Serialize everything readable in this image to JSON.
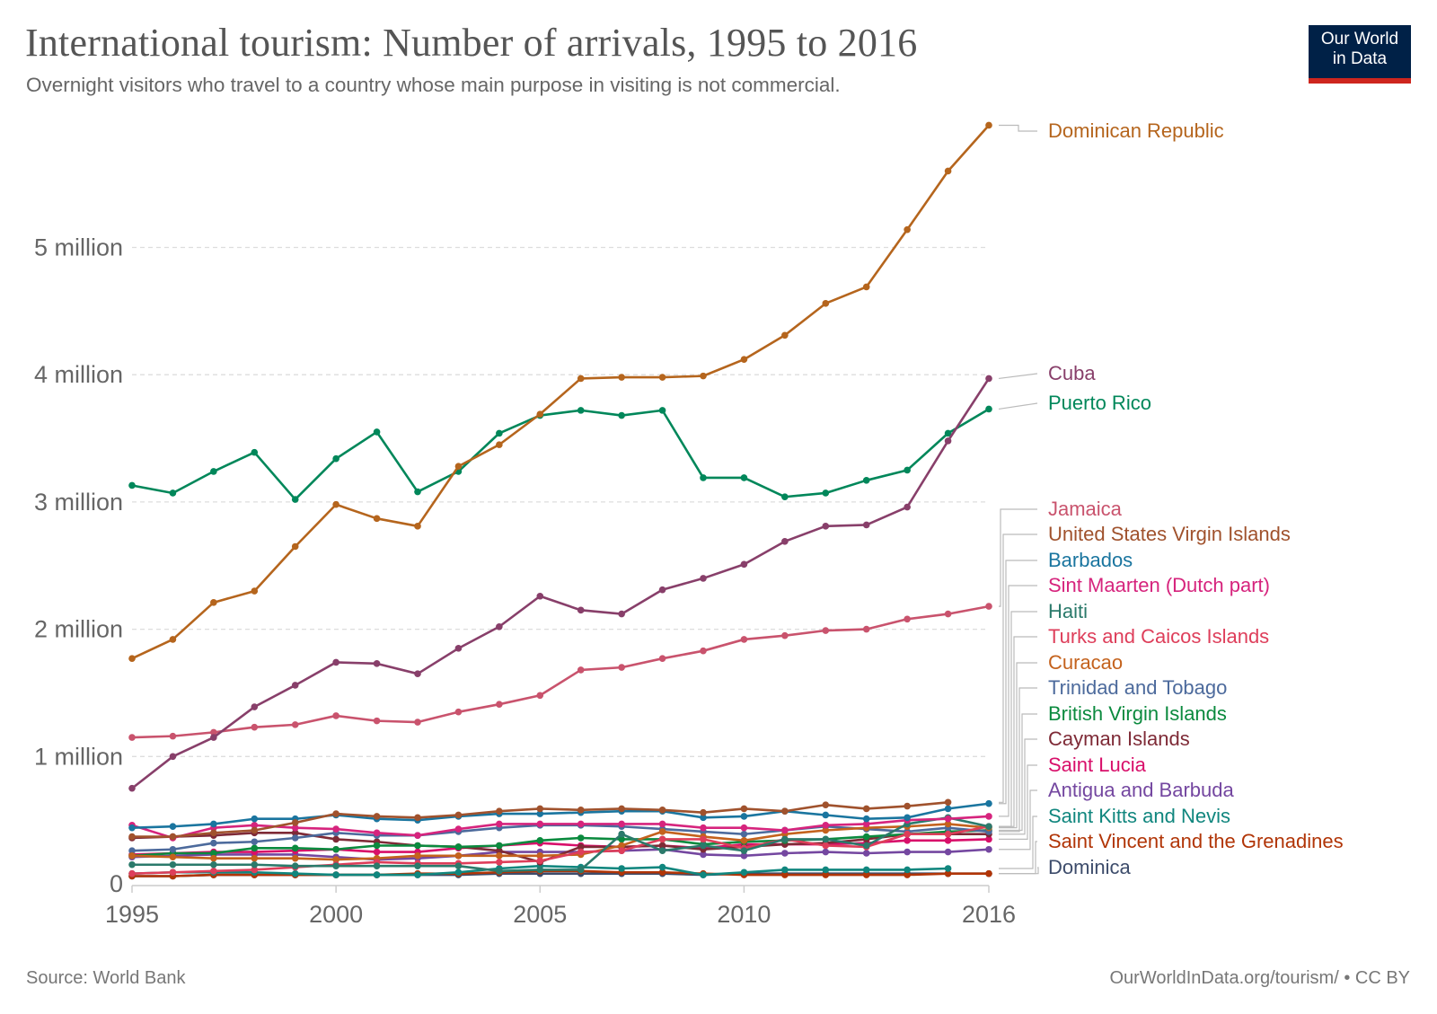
{
  "header": {
    "title": "International tourism: Number of arrivals, 1995 to 2016",
    "subtitle": "Overnight visitors who travel to a country whose main purpose in visiting is not commercial.",
    "logo_line1": "Our World",
    "logo_line2": "in Data"
  },
  "footer": {
    "source": "Source: World Bank",
    "credit": "OurWorldInData.org/tourism/ • CC BY"
  },
  "colors": {
    "logo_bg": "#002147",
    "logo_bar": "#ce261e",
    "grid": "#dddddd",
    "axis_text": "#666666",
    "connector": "#bbbbbb"
  },
  "chart_data": {
    "type": "line",
    "title": "International tourism: Number of arrivals, 1995 to 2016",
    "subtitle": "Overnight visitors who travel to a country whose main purpose in visiting is not commercial.",
    "xlabel": "",
    "ylabel": "",
    "units": "millions of arrivals",
    "x": [
      1995,
      1996,
      1997,
      1998,
      1999,
      2000,
      2001,
      2002,
      2003,
      2004,
      2005,
      2006,
      2007,
      2008,
      2009,
      2010,
      2011,
      2012,
      2013,
      2014,
      2015,
      2016
    ],
    "xticks": [
      1995,
      2000,
      2005,
      2010,
      2016
    ],
    "xtick_labels": [
      "1995",
      "2000",
      "2005",
      "2010",
      "2016"
    ],
    "yticks": [
      0,
      1,
      2,
      3,
      4,
      5
    ],
    "ytick_labels": [
      "0",
      "1 million",
      "2 million",
      "3 million",
      "4 million",
      "5 million"
    ],
    "ylim": [
      0,
      6
    ],
    "xlim": [
      1995,
      2016
    ],
    "grid": "horizontal dashed",
    "legend": "right, labels at line ends",
    "series": [
      {
        "name": "Dominican Republic",
        "color": "#b5651d",
        "values": [
          1.77,
          1.92,
          2.21,
          2.3,
          2.65,
          2.98,
          2.87,
          2.81,
          3.28,
          3.45,
          3.69,
          3.97,
          3.98,
          3.98,
          3.99,
          4.12,
          4.31,
          4.56,
          4.69,
          5.14,
          5.6,
          5.96
        ]
      },
      {
        "name": "Cuba",
        "color": "#883f6a",
        "values": [
          0.75,
          1.0,
          1.15,
          1.39,
          1.56,
          1.74,
          1.73,
          1.65,
          1.85,
          2.02,
          2.26,
          2.15,
          2.12,
          2.31,
          2.4,
          2.51,
          2.69,
          2.81,
          2.82,
          2.96,
          3.48,
          3.97
        ]
      },
      {
        "name": "Puerto Rico",
        "color": "#00875a",
        "values": [
          3.13,
          3.07,
          3.24,
          3.39,
          3.02,
          3.34,
          3.55,
          3.08,
          3.24,
          3.54,
          3.68,
          3.72,
          3.68,
          3.72,
          3.19,
          3.19,
          3.04,
          3.07,
          3.17,
          3.25,
          3.54,
          3.73
        ]
      },
      {
        "name": "Jamaica",
        "color": "#c9536d",
        "values": [
          1.15,
          1.16,
          1.19,
          1.23,
          1.25,
          1.32,
          1.28,
          1.27,
          1.35,
          1.41,
          1.48,
          1.68,
          1.7,
          1.77,
          1.83,
          1.92,
          1.95,
          1.99,
          2.0,
          2.08,
          2.12,
          2.18
        ]
      },
      {
        "name": "United States Virgin Islands",
        "color": "#a0522d",
        "values": [
          0.37,
          0.37,
          0.4,
          0.42,
          0.48,
          0.55,
          0.53,
          0.52,
          0.54,
          0.57,
          0.59,
          0.58,
          0.59,
          0.58,
          0.56,
          0.59,
          0.57,
          0.62,
          0.59,
          0.61,
          0.64,
          null
        ]
      },
      {
        "name": "Barbados",
        "color": "#1a759f",
        "values": [
          0.44,
          0.45,
          0.47,
          0.51,
          0.51,
          0.54,
          0.51,
          0.5,
          0.53,
          0.55,
          0.55,
          0.56,
          0.57,
          0.57,
          0.52,
          0.53,
          0.57,
          0.54,
          0.51,
          0.52,
          0.59,
          0.63
        ]
      },
      {
        "name": "Sint Maarten (Dutch part)",
        "color": "#d6247d",
        "values": [
          0.46,
          0.36,
          0.44,
          0.46,
          0.44,
          0.43,
          0.4,
          0.38,
          0.43,
          0.47,
          0.47,
          0.47,
          0.47,
          0.47,
          0.44,
          0.44,
          0.42,
          0.46,
          0.47,
          0.5,
          0.51,
          0.53
        ]
      },
      {
        "name": "Haiti",
        "color": "#2b7a6b",
        "values": [
          0.15,
          0.15,
          0.15,
          0.15,
          0.14,
          0.14,
          0.14,
          0.14,
          0.14,
          0.1,
          0.11,
          0.11,
          0.39,
          0.26,
          0.3,
          0.26,
          0.35,
          0.35,
          0.3,
          0.47,
          0.52,
          0.45
        ]
      },
      {
        "name": "Turks and Caicos Islands",
        "color": "#de3e5a",
        "values": [
          0.08,
          0.09,
          0.1,
          0.11,
          0.13,
          0.15,
          0.17,
          0.16,
          0.16,
          0.17,
          0.18,
          0.25,
          0.26,
          0.35,
          0.35,
          0.28,
          0.35,
          0.3,
          0.29,
          0.39,
          0.39,
          0.45
        ]
      },
      {
        "name": "Curacao",
        "color": "#c4621d",
        "values": [
          0.22,
          0.21,
          0.2,
          0.2,
          0.2,
          0.19,
          0.2,
          0.22,
          0.22,
          0.22,
          0.22,
          0.23,
          0.3,
          0.41,
          0.37,
          0.34,
          0.39,
          0.42,
          0.44,
          0.45,
          0.47,
          0.44
        ]
      },
      {
        "name": "Trinidad and Tobago",
        "color": "#4c6a9c",
        "values": [
          0.26,
          0.27,
          0.32,
          0.33,
          0.36,
          0.4,
          0.38,
          0.38,
          0.41,
          0.44,
          0.46,
          0.46,
          0.45,
          0.43,
          0.41,
          0.39,
          0.42,
          0.45,
          0.43,
          0.41,
          0.44,
          0.41
        ]
      },
      {
        "name": "British Virgin Islands",
        "color": "#0b8a3e",
        "values": [
          0.22,
          0.24,
          0.24,
          0.28,
          0.28,
          0.27,
          0.3,
          0.3,
          0.29,
          0.3,
          0.34,
          0.36,
          0.35,
          0.35,
          0.31,
          0.33,
          0.34,
          0.35,
          0.37,
          0.39,
          0.41,
          0.42
        ]
      },
      {
        "name": "Cayman Islands",
        "color": "#7e2a36",
        "values": [
          0.36,
          0.37,
          0.38,
          0.4,
          0.4,
          0.35,
          0.33,
          0.3,
          0.29,
          0.26,
          0.17,
          0.29,
          0.29,
          0.3,
          0.27,
          0.29,
          0.31,
          0.32,
          0.35,
          0.39,
          0.39,
          0.39
        ]
      },
      {
        "name": "Saint Lucia",
        "color": "#d80f6a",
        "values": [
          0.23,
          0.24,
          0.25,
          0.25,
          0.26,
          0.27,
          0.25,
          0.25,
          0.28,
          0.3,
          0.32,
          0.3,
          0.29,
          0.3,
          0.28,
          0.31,
          0.31,
          0.31,
          0.32,
          0.34,
          0.34,
          0.35
        ]
      },
      {
        "name": "Antigua and Barbuda",
        "color": "#7447a0",
        "values": [
          0.21,
          0.22,
          0.23,
          0.23,
          0.23,
          0.21,
          0.19,
          0.2,
          0.22,
          0.25,
          0.25,
          0.25,
          0.26,
          0.27,
          0.23,
          0.22,
          0.24,
          0.25,
          0.24,
          0.25,
          0.25,
          0.27
        ]
      },
      {
        "name": "Saint Kitts and Nevis",
        "color": "#10867e",
        "values": [
          0.08,
          0.09,
          0.09,
          0.09,
          0.08,
          0.07,
          0.07,
          0.07,
          0.09,
          0.12,
          0.14,
          0.13,
          0.12,
          0.13,
          0.07,
          0.09,
          0.11,
          0.11,
          0.11,
          0.11,
          0.12,
          null
        ]
      },
      {
        "name": "Saint Vincent and the Grenadines",
        "color": "#b13507",
        "values": [
          0.06,
          0.06,
          0.07,
          0.07,
          0.07,
          0.07,
          0.07,
          0.08,
          0.08,
          0.09,
          0.1,
          0.1,
          0.09,
          0.09,
          0.08,
          0.07,
          0.07,
          0.07,
          0.07,
          0.07,
          0.08,
          0.08
        ]
      },
      {
        "name": "Dominica",
        "color": "#3d4c6b",
        "values": [
          0.06,
          0.06,
          0.07,
          0.07,
          0.07,
          0.07,
          0.07,
          0.07,
          0.07,
          0.08,
          0.08,
          0.08,
          0.08,
          0.08,
          0.07,
          0.08,
          0.08,
          0.08,
          0.08,
          0.08,
          0.08,
          0.08
        ]
      }
    ],
    "end_labels": [
      "Dominican Republic",
      "Cuba",
      "Puerto Rico",
      "Jamaica",
      "United States Virgin Islands",
      "Barbados",
      "Sint Maarten (Dutch part)",
      "Haiti",
      "Turks and Caicos Islands",
      "Curacao",
      "Trinidad and Tobago",
      "British Virgin Islands",
      "Cayman Islands",
      "Saint Lucia",
      "Antigua and Barbuda",
      "Saint Kitts and Nevis",
      "Saint Vincent and the Grenadines",
      "Dominica"
    ]
  }
}
